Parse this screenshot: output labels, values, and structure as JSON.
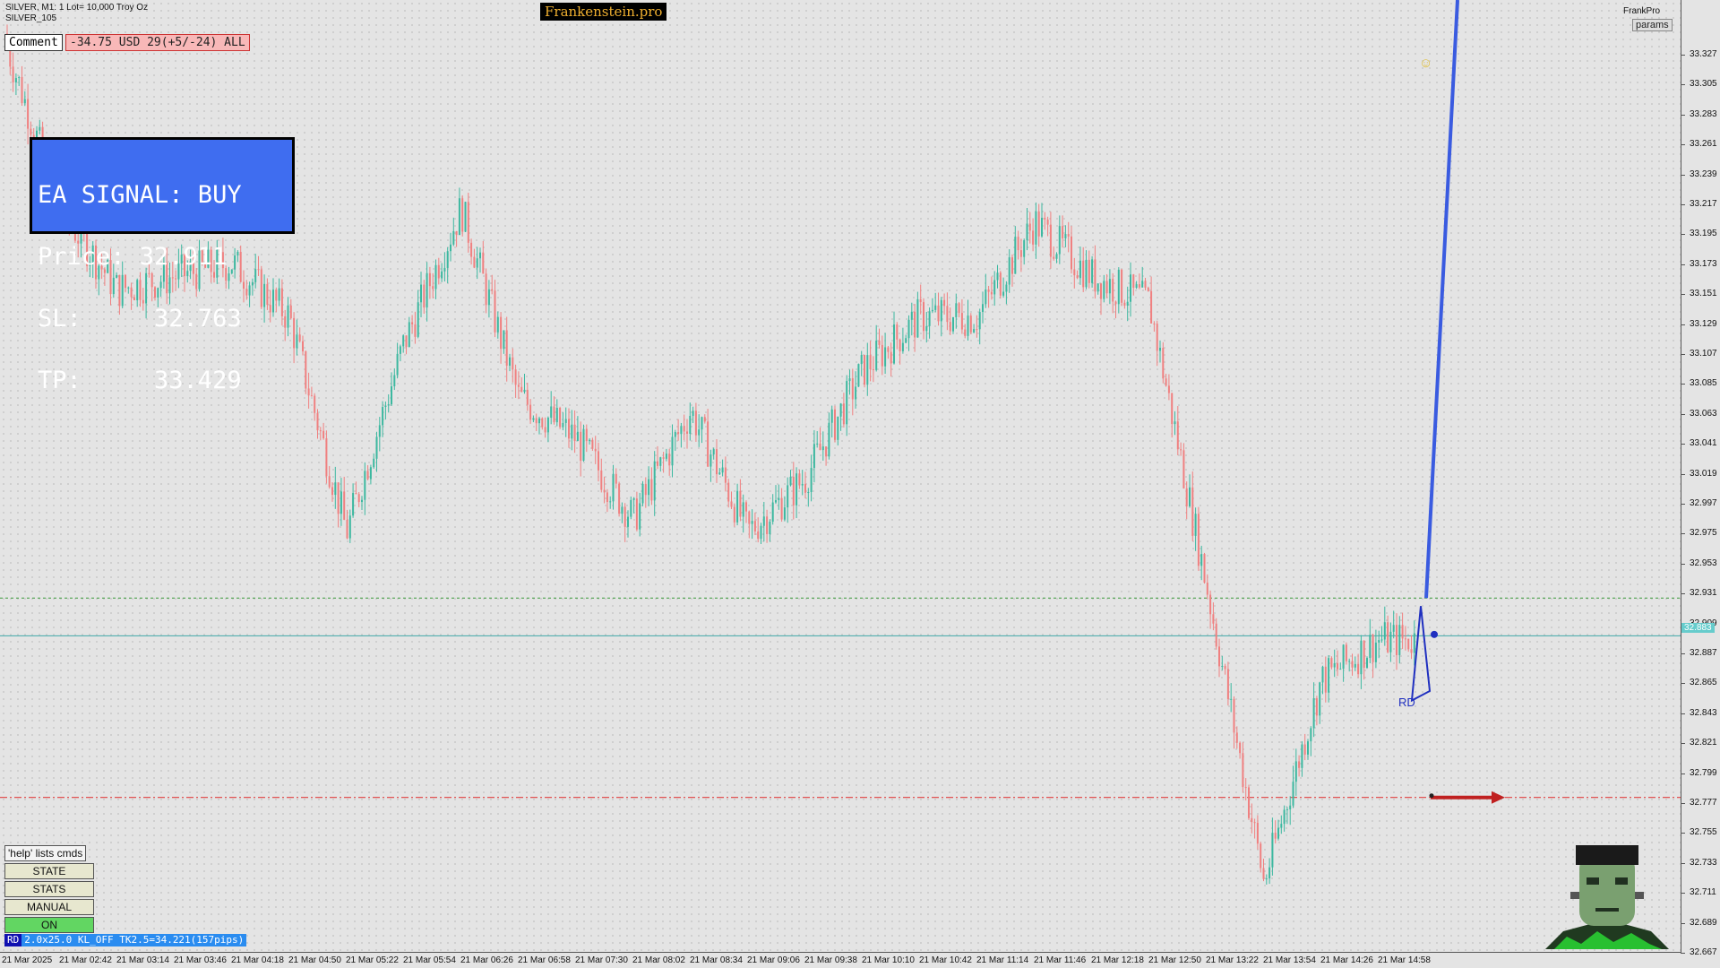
{
  "header": {
    "symbol_line": "SILVER, M1:  1 Lot= 10,000 Troy Oz",
    "template_line": "SILVER_105",
    "brand": "Frankenstein.pro",
    "comment_button": "Comment",
    "pnl_text": "-34.75 USD 29(+5/-24) ALL",
    "right_label": "FrankPro",
    "params_button": "params"
  },
  "signal_box": {
    "line1": "EA SIGNAL: BUY",
    "line2": "Price: 32.911",
    "line3": "SL:     32.763",
    "line4": "TP:     33.429"
  },
  "price_axis": {
    "labels": [
      "33.327",
      "33.305",
      "33.283",
      "33.261",
      "33.239",
      "33.217",
      "33.195",
      "33.173",
      "33.151",
      "33.129",
      "33.107",
      "33.085",
      "33.063",
      "33.041",
      "33.019",
      "32.997",
      "32.975",
      "32.953",
      "32.931",
      "32.909",
      "32.887",
      "32.865",
      "32.843",
      "32.821",
      "32.799",
      "32.777",
      "32.755",
      "32.733",
      "32.711",
      "32.689",
      "32.667"
    ],
    "current_price": "32.883"
  },
  "time_axis": {
    "labels": [
      "21 Mar 2025",
      "21 Mar 02:42",
      "21 Mar 03:14",
      "21 Mar 03:46",
      "21 Mar 04:18",
      "21 Mar 04:50",
      "21 Mar 05:22",
      "21 Mar 05:54",
      "21 Mar 06:26",
      "21 Mar 06:58",
      "21 Mar 07:30",
      "21 Mar 08:02",
      "21 Mar 08:34",
      "21 Mar 09:06",
      "21 Mar 09:38",
      "21 Mar 10:10",
      "21 Mar 10:42",
      "21 Mar 11:14",
      "21 Mar 11:46",
      "21 Mar 12:18",
      "21 Mar 12:50",
      "21 Mar 13:22",
      "21 Mar 13:54",
      "21 Mar 14:26",
      "21 Mar 14:58"
    ]
  },
  "controls": {
    "help": "'help' lists cmds",
    "state": "STATE",
    "stats": "STATS",
    "manual": "MANUAL",
    "on": "ON"
  },
  "status_bar": {
    "tag": "RD",
    "text": "2.0x25.0 KL_OFF TK2.5=34.221(157pips)"
  },
  "annotations": {
    "pattern_label": "RD"
  },
  "colors": {
    "bull_candle": "#3cb8a0",
    "bear_candle": "#f08080",
    "signal_bg": "#3f6df0",
    "tp_line": "#3a5be0",
    "sl_line": "#e04040"
  },
  "chart_data": {
    "type": "candlestick",
    "symbol": "SILVER",
    "timeframe": "M1",
    "y_range": [
      32.657,
      33.337
    ],
    "lines": {
      "entry": 32.911,
      "current": 32.883,
      "stop_loss": 32.763,
      "take_profit": 33.429
    },
    "close_path": [
      [
        "21 Mar 2025",
        33.33
      ],
      [
        "21 Mar 02:42",
        33.2
      ],
      [
        "21 Mar 03:14",
        33.14
      ],
      [
        "21 Mar 03:46",
        33.15
      ],
      [
        "21 Mar 04:18",
        33.16
      ],
      [
        "21 Mar 04:50",
        33.12
      ],
      [
        "21 Mar 05:22",
        32.96
      ],
      [
        "21 Mar 05:54",
        33.1
      ],
      [
        "21 Mar 06:26",
        33.2
      ],
      [
        "21 Mar 06:58",
        33.06
      ],
      [
        "21 Mar 07:30",
        33.03
      ],
      [
        "21 Mar 08:02",
        32.97
      ],
      [
        "21 Mar 08:34",
        33.05
      ],
      [
        "21 Mar 09:06",
        32.96
      ],
      [
        "21 Mar 09:38",
        33.0
      ],
      [
        "21 Mar 10:10",
        33.08
      ],
      [
        "21 Mar 10:42",
        33.12
      ],
      [
        "21 Mar 11:14",
        33.12
      ],
      [
        "21 Mar 11:46",
        33.19
      ],
      [
        "21 Mar 12:18",
        33.15
      ],
      [
        "21 Mar 12:50",
        33.13
      ],
      [
        "21 Mar 13:22",
        32.92
      ],
      [
        "21 Mar 13:54",
        32.7
      ],
      [
        "21 Mar 14:26",
        32.85
      ],
      [
        "21 Mar 14:58",
        32.88
      ]
    ]
  }
}
